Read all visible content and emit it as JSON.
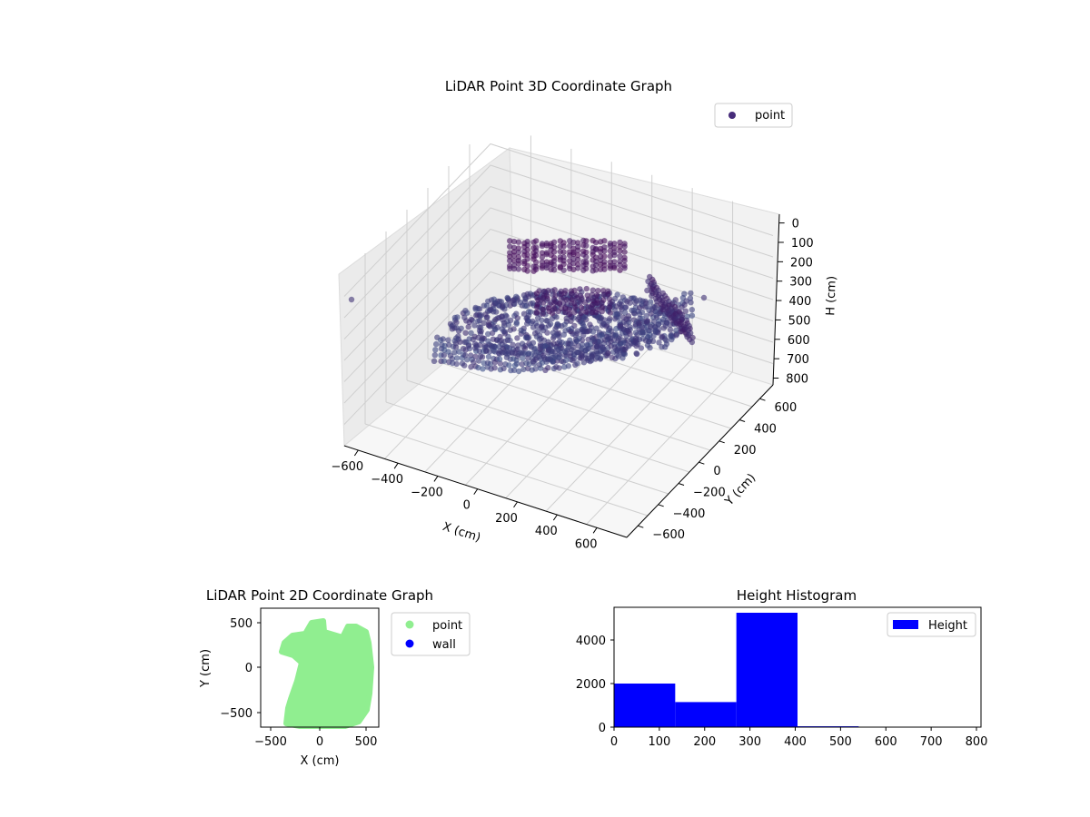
{
  "chart_data": [
    {
      "type": "scatter3d",
      "title": "LiDAR Point 3D Coordinate Graph",
      "xlabel": "X (cm)",
      "ylabel": "Y (cm)",
      "zlabel": "H (cm)",
      "xticks": [
        "−600",
        "−400",
        "−200",
        "0",
        "200",
        "400",
        "600"
      ],
      "yticks": [
        "−600",
        "−400",
        "−200",
        "0",
        "200",
        "400",
        "600"
      ],
      "zticks": [
        "0",
        "100",
        "200",
        "300",
        "400",
        "500",
        "600",
        "700",
        "800"
      ],
      "zlim": [
        0,
        800
      ],
      "z_inverted": true,
      "legend": [
        {
          "label": "point",
          "color": "#472c7a"
        }
      ],
      "legend_position": "top-right",
      "colormap": "viridis"
    },
    {
      "type": "scatter",
      "title": "LiDAR Point 2D Coordinate Graph",
      "xlabel": "X (cm)",
      "ylabel": "Y (cm)",
      "xticks": [
        "−500",
        "0",
        "500"
      ],
      "yticks": [
        "500",
        "0",
        "−500"
      ],
      "series": [
        {
          "name": "point",
          "color": "#90ee90"
        },
        {
          "name": "wall",
          "color": "#0000ff"
        }
      ],
      "legend_position": "outside-right"
    },
    {
      "type": "bar",
      "title": "Height Histogram",
      "xticks": [
        "0",
        "100",
        "200",
        "300",
        "400",
        "500",
        "600",
        "700",
        "800"
      ],
      "yticks": [
        "0",
        "2000",
        "4000"
      ],
      "bins": [
        {
          "start": 0,
          "end": 135,
          "count": 2000
        },
        {
          "start": 135,
          "end": 270,
          "count": 1150
        },
        {
          "start": 270,
          "end": 405,
          "count": 5250
        },
        {
          "start": 405,
          "end": 540,
          "count": 40
        },
        {
          "start": 540,
          "end": 675,
          "count": 0
        },
        {
          "start": 675,
          "end": 810,
          "count": 0
        }
      ],
      "xlim": [
        0,
        810
      ],
      "ylim": [
        0,
        5500
      ],
      "series": [
        {
          "name": "Height",
          "color": "#0000ff"
        }
      ],
      "legend_position": "top-right"
    }
  ]
}
